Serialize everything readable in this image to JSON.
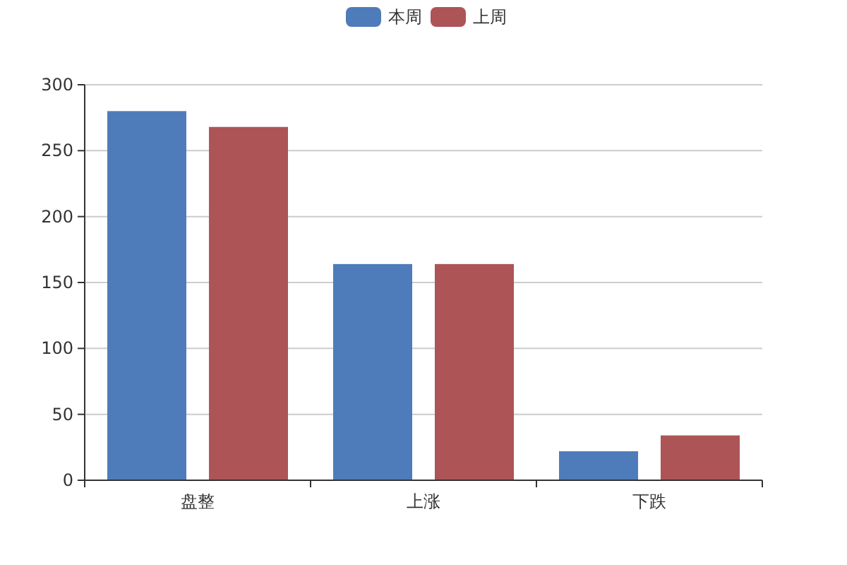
{
  "chart_data": {
    "type": "bar",
    "categories": [
      "盘整",
      "上涨",
      "下跌"
    ],
    "series": [
      {
        "name": "本周",
        "color": "#4e7cba",
        "values": [
          280,
          164,
          22
        ]
      },
      {
        "name": "上周",
        "color": "#ad5457",
        "values": [
          268,
          164,
          34
        ]
      }
    ],
    "ylim": [
      0,
      300
    ],
    "yticks": [
      0,
      50,
      100,
      150,
      200,
      250,
      300
    ],
    "grid": "y",
    "legend": "top"
  }
}
